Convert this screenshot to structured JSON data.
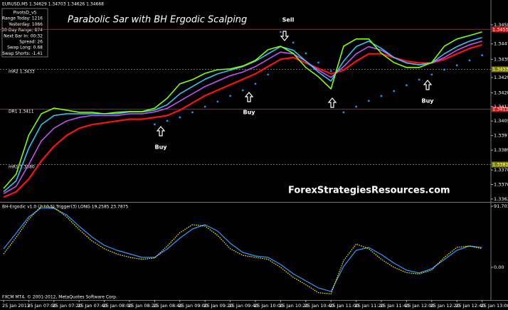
{
  "chart_data": [
    {
      "type": "line",
      "header": "EURUSD,M5 1.34629 1.34703 1.34626 1.34668",
      "title": "Parabolic Sar with BH Ergodic Scalping",
      "watermark": "ForexStrategiesResources.com",
      "info_box": [
        "PivotsD_v5",
        "Range Today: 1216",
        "Yesterday: 1066",
        "30 Day Range: 874",
        "Next Bar In: 00:32",
        "Spread: 26",
        "Swap Long: 0.68",
        "Swap Shorts: -1.41"
      ],
      "signals": [
        "Sell",
        "Buy",
        "Buy",
        "Buy"
      ],
      "categories": [
        "25 Jan 2013",
        null,
        "25 Jan 07:00",
        null,
        "25 Jan 07:20",
        null,
        "25 Jan 07:40",
        null,
        "25 Jan 08:00",
        null,
        "25 Jan 08:20",
        null,
        "25 Jan 08:40",
        null,
        "25 Jan 09:00",
        null,
        "25 Jan 09:20",
        null,
        "25 Jan 09:40",
        null,
        "25 Jan 10:00",
        null,
        "25 Jan 10:20",
        null,
        "25 Jan 10:40",
        null,
        "25 Jan 11:00",
        null,
        "25 Jan 11:20",
        null,
        "25 Jan 11:40",
        null,
        "25 Jan 12:00",
        null,
        "25 Jan 12:20",
        null,
        "25 Jan 12:40",
        null,
        "25 Jan 13:00"
      ],
      "series": [
        {
          "color": "#ff1010",
          "width": 2.2,
          "values": [
            1.3363,
            1.3366,
            1.3373,
            1.3383,
            1.3391,
            1.3397,
            1.3401,
            1.3403,
            1.3404,
            1.3405,
            1.3406,
            1.3406,
            1.3407,
            1.3408,
            1.3411,
            1.3415,
            1.3419,
            1.3422,
            1.3425,
            1.3428,
            1.3431,
            1.3435,
            1.3439,
            1.344,
            1.3437,
            1.3434,
            1.3431,
            1.3433,
            1.3438,
            1.3442,
            1.3442,
            1.344,
            1.3438,
            1.3437,
            1.3437,
            1.3439,
            1.3442,
            1.3445,
            1.3447
          ]
        },
        {
          "color": "#cc55ff",
          "width": 1.5,
          "values": [
            1.3365,
            1.3369,
            1.3381,
            1.3394,
            1.3401,
            1.3405,
            1.3407,
            1.3408,
            1.3408,
            1.3408,
            1.3409,
            1.3409,
            1.341,
            1.3412,
            1.3416,
            1.342,
            1.3424,
            1.3427,
            1.343,
            1.3432,
            1.3435,
            1.3439,
            1.3443,
            1.3442,
            1.3438,
            1.3433,
            1.3429,
            1.3435,
            1.3442,
            1.3446,
            1.3444,
            1.344,
            1.3437,
            1.3436,
            1.3437,
            1.344,
            1.3444,
            1.3447,
            1.3449
          ]
        },
        {
          "color": "#33ccff",
          "width": 1.5,
          "values": [
            1.3366,
            1.3372,
            1.339,
            1.3403,
            1.3408,
            1.3409,
            1.3409,
            1.3409,
            1.3409,
            1.3409,
            1.341,
            1.341,
            1.3411,
            1.3414,
            1.342,
            1.3424,
            1.3428,
            1.3431,
            1.3433,
            1.3435,
            1.3438,
            1.3442,
            1.3446,
            1.3444,
            1.3438,
            1.3432,
            1.3427,
            1.3438,
            1.3446,
            1.3449,
            1.3445,
            1.344,
            1.3437,
            1.3436,
            1.3437,
            1.3442,
            1.3446,
            1.3449,
            1.3451
          ]
        },
        {
          "color": "#7fff00",
          "width": 1.6,
          "values": [
            1.33678,
            1.33757,
            1.33972,
            1.3409,
            1.34121,
            1.3411,
            1.34098,
            1.34098,
            1.3409,
            1.34098,
            1.34102,
            1.34102,
            1.34121,
            1.34176,
            1.34255,
            1.34278,
            1.34313,
            1.34333,
            1.34337,
            1.34353,
            1.34384,
            1.34443,
            1.34462,
            1.34423,
            1.34345,
            1.34294,
            1.34227,
            1.34462,
            1.34502,
            1.34502,
            1.34423,
            1.34372,
            1.34345,
            1.34345,
            1.34372,
            1.34462,
            1.34502,
            1.34521,
            1.34541
          ]
        },
        {
          "color": "#1e90ff",
          "style": "dots",
          "values": [
            null,
            null,
            null,
            null,
            null,
            null,
            null,
            null,
            null,
            null,
            null,
            null,
            1.34031,
            1.34051,
            1.3407,
            1.34098,
            1.34129,
            1.34157,
            1.34188,
            1.34219,
            1.34255,
            1.34306,
            1.34541,
            1.34482,
            1.34423,
            1.34372,
            1.34325,
            1.34098,
            1.34129,
            1.34161,
            1.34188,
            1.34215,
            1.34247,
            1.34278,
            1.34306,
            1.34333,
            1.34357,
            1.34384,
            1.34412
          ]
        }
      ],
      "levels": [
        {
          "value": 1.34555,
          "color": "#c01818",
          "style": "solid"
        },
        {
          "name": "mR2 1.3433",
          "value": 1.34335,
          "color": "#808000",
          "style": "dotted"
        },
        {
          "name": "DR1 1.3411",
          "value": 1.34115,
          "color": "#c01818",
          "style": "solid"
        },
        {
          "name": "mR1 1.3380",
          "value": 1.3381,
          "value_label": "1.33810",
          "color": "#808000",
          "style": "dotted"
        }
      ],
      "ylim": [
        1.33608,
        1.34658
      ],
      "yticks": [
        {
          "value": 1.3458,
          "label": "1.34580"
        },
        1.34475,
        {
          "value": 1.3439,
          "label": "1.34390"
        },
        {
          "value": 1.3429,
          "label": "1.34290"
        },
        1.34205,
        {
          "value": 1.3413,
          "label": "1.34130"
        },
        {
          "value": 1.3405,
          "label": "1.34050"
        },
        {
          "value": 1.3397,
          "label": "1.33970"
        },
        {
          "value": 1.3389,
          "label": "1.33890"
        },
        {
          "value": 1.3378,
          "label": "1.33780"
        },
        {
          "value": 1.337,
          "label": "1.33700"
        },
        {
          "value": 1.3362,
          "label": "1.33620"
        }
      ]
    },
    {
      "type": "line",
      "title": "BH-Ergodic v1.0 (2,10,5) Trigger(3) LONG 19.2585 23.7875",
      "annotation": "FXCM MT4, © 2001-2012, MetaQuotes Software Corp.",
      "series": [
        {
          "color": "#3399ff",
          "values": [
            27.7,
            51.2,
            75.7,
            89.5,
            88.5,
            78.9,
            61.8,
            45.8,
            33,
            25.6,
            20.3,
            14.9,
            14.9,
            27.7,
            43.7,
            57.6,
            64,
            54.4,
            36.2,
            22.4,
            17.1,
            14.9,
            4.3,
            -9.6,
            -20.3,
            -30.9,
            -36.2,
            1.1,
            25.6,
            29.8,
            19.2,
            6.4,
            -4.3,
            -8.5,
            -2.1,
            11.7,
            25.6,
            32,
            29.8
          ]
        },
        {
          "color": "#ffff00",
          "style": "dotted",
          "values": [
            20,
            45,
            72,
            92,
            90,
            76,
            57,
            40,
            28,
            20,
            15,
            12,
            14,
            32,
            52,
            64,
            62,
            48,
            28,
            18,
            15,
            12,
            0,
            -15,
            -26,
            -38,
            -40,
            10,
            35,
            28,
            12,
            0,
            -8,
            -10,
            -4,
            15,
            30,
            32,
            28
          ]
        }
      ],
      "ylim": [
        -47,
        95
      ],
      "yticks": [
        91.7035,
        {
          "value": 0,
          "label": "0.00"
        }
      ]
    }
  ]
}
